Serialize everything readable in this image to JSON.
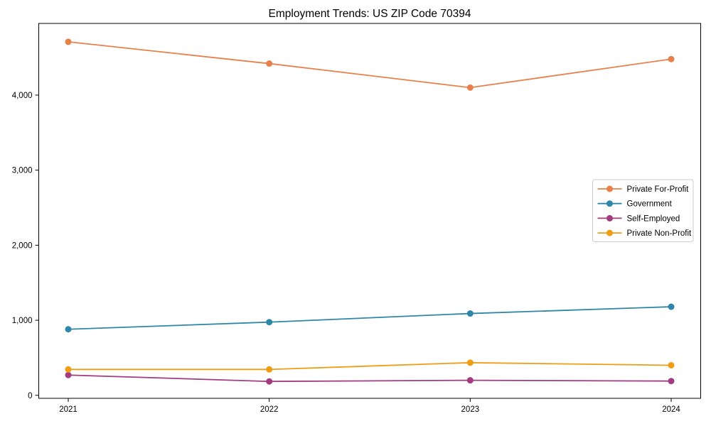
{
  "figure": {
    "background": "#ffffff",
    "axis_color": "#000000",
    "text_color": "#000000",
    "legend_border_color": "#cccccc",
    "legend_background": "#ffffff"
  },
  "chart_data": {
    "type": "line",
    "title": "Employment Trends: US ZIP Code 70394",
    "xlabel": "",
    "ylabel": "",
    "categories": [
      "2021",
      "2022",
      "2023",
      "2024"
    ],
    "series": [
      {
        "name": "Private For-Profit",
        "color": "#e8804a",
        "values": [
          4710,
          4420,
          4100,
          4480
        ]
      },
      {
        "name": "Government",
        "color": "#2f87a8",
        "values": [
          880,
          975,
          1090,
          1180
        ]
      },
      {
        "name": "Self-Employed",
        "color": "#a23b80",
        "values": [
          270,
          185,
          200,
          190
        ]
      },
      {
        "name": "Private Non-Profit",
        "color": "#f09d14",
        "values": [
          345,
          345,
          435,
          400
        ]
      }
    ],
    "ylim": [
      -40,
      4955
    ],
    "yticks": [
      0,
      1000,
      2000,
      3000,
      4000
    ],
    "ytick_labels": [
      "0",
      "1,000",
      "2,000",
      "3,000",
      "4,000"
    ],
    "grid": false,
    "legend_position": "center right"
  }
}
